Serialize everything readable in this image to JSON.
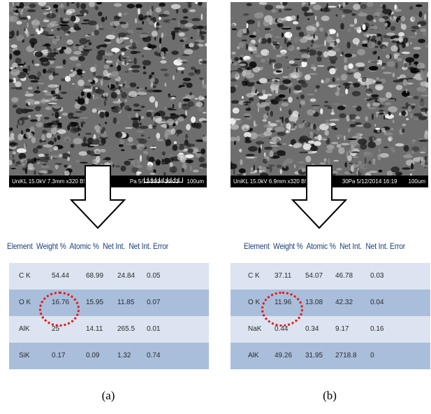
{
  "panels": [
    {
      "sem_info": "UniKL 15.0kV 7.3mm x320 BSEC",
      "sem_info_tail": "Pa 5/12/2014 16:03",
      "sem_scale": "100um",
      "table": {
        "headers": [
          "Element",
          "Weight %",
          "Atomic %",
          "Net Int.",
          "Net Int. Error"
        ],
        "rows": [
          [
            "C K",
            "54.44",
            "68.99",
            "24.84",
            "0.05"
          ],
          [
            "O K",
            "16.76",
            "15.95",
            "11.85",
            "0.07"
          ],
          [
            "AlK",
            "25",
            "14.11",
            "265.5",
            "0.01"
          ],
          [
            "SiK",
            "0.17",
            "0.09",
            "1.32",
            "0.74"
          ]
        ]
      },
      "caption": "(a)"
    },
    {
      "sem_info": "UniKL 15.0kV 6.9mm x320 BS",
      "sem_info_tail": "30Pa 5/12/2014 16:19",
      "sem_scale": "100um",
      "table": {
        "headers": [
          "Element",
          "Weight %",
          "Atomic %",
          "Net Int.",
          "Net Int. Error"
        ],
        "rows": [
          [
            "C K",
            "37.11",
            "54.07",
            "46.78",
            "0.03"
          ],
          [
            "O K",
            "11.96",
            "13.08",
            "42.32",
            "0.04"
          ],
          [
            "NaK",
            "0.44",
            "0.34",
            "9.17",
            "0.16"
          ],
          [
            "AlK",
            "49.26",
            "31.95",
            "2718.8",
            "0"
          ]
        ]
      },
      "caption": "(b)"
    }
  ],
  "colors": {
    "header_text": "#1f3f7a",
    "row_light": "#dbe4f0",
    "row_dark": "#a9bedb",
    "highlight_circle": "#e21a1a"
  }
}
